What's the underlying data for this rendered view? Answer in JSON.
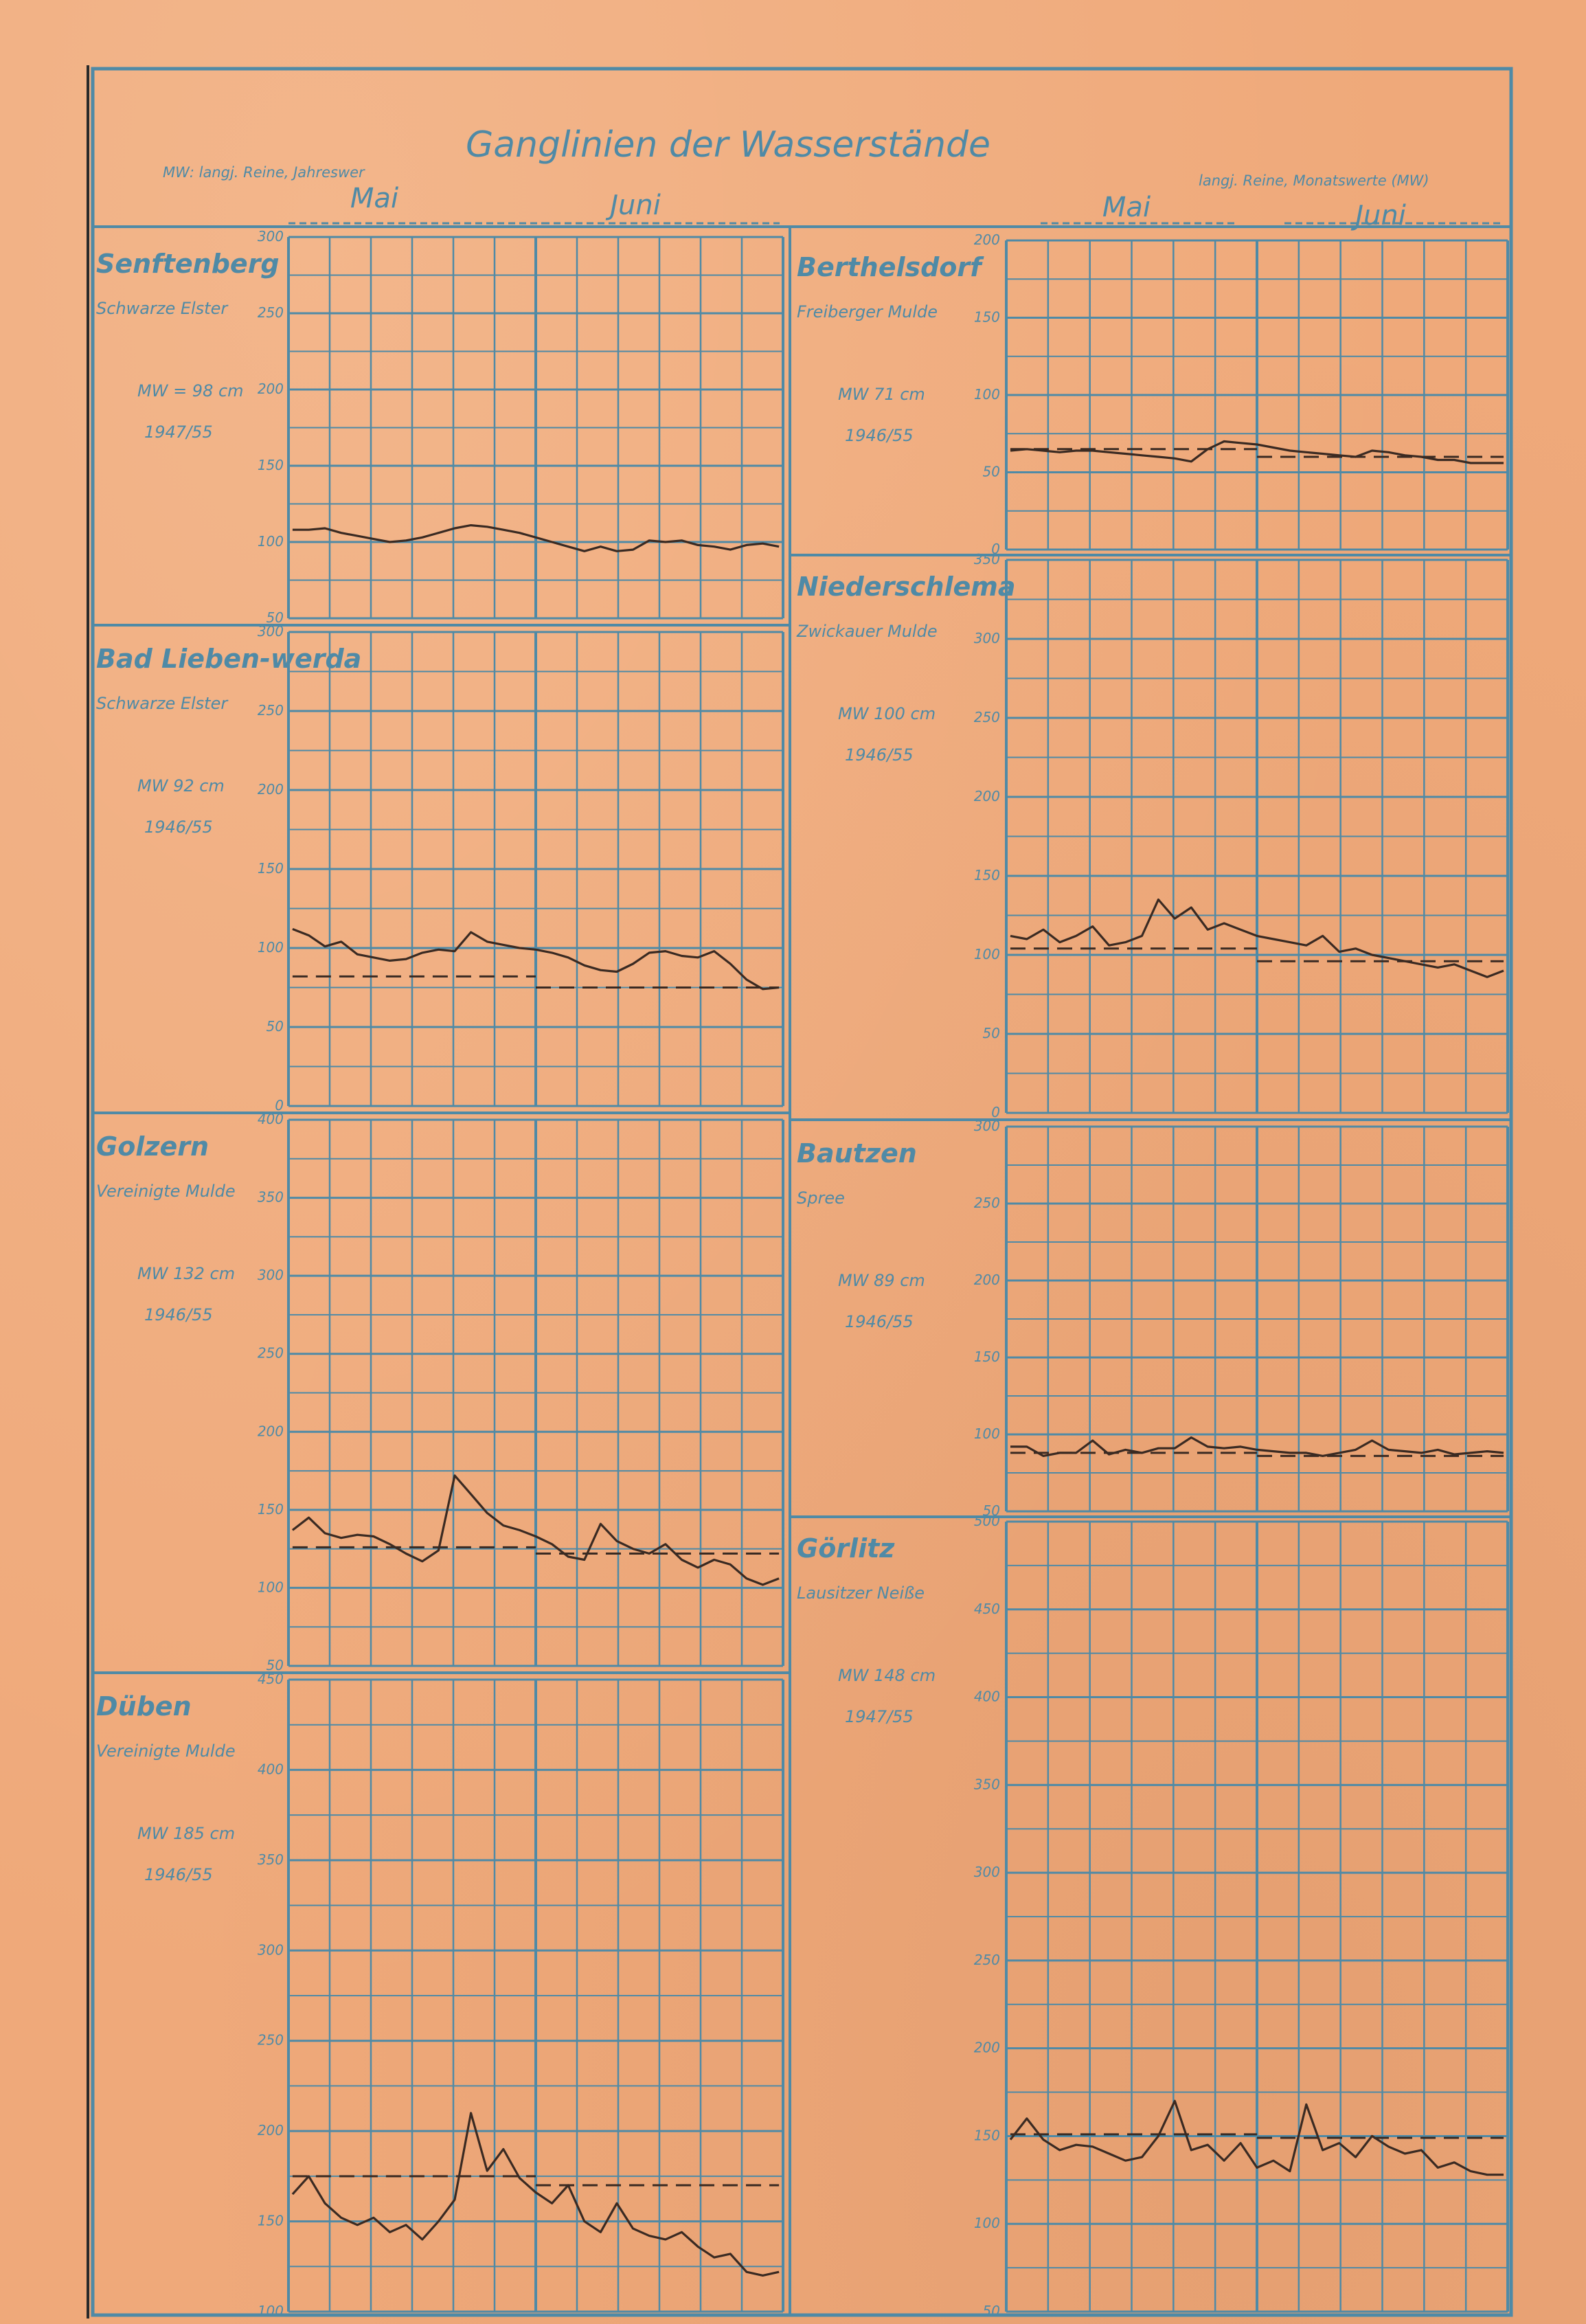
{
  "header": {
    "title": "Ganglinien der Wasserstände",
    "legend_left": "MW: langj. Reine, Jahreswer",
    "legend_right": "langj. Reine, Monatswerte (MW)",
    "month_may": "Mai",
    "month_june": "Juni"
  },
  "colors": {
    "paper": "#efa97a",
    "grid": "#4f8aa6",
    "ink": "#3a2a22"
  },
  "chart_data": [
    {
      "type": "line",
      "station": "Senftenberg",
      "river": "Schwarze Elster",
      "mw": "MW = 98 cm",
      "period": "1947/55",
      "ylim": [
        50,
        300
      ],
      "ticks": [
        300,
        250,
        200,
        150,
        100,
        50
      ],
      "tick_labels": [
        "300",
        "250",
        "200",
        "150",
        "100",
        "50"
      ],
      "x": [
        1,
        3,
        5,
        7,
        9,
        11,
        13,
        15,
        17,
        19,
        21,
        23,
        25,
        27,
        29,
        31,
        33,
        35,
        37,
        39,
        41,
        43,
        45,
        47,
        49,
        51,
        53,
        55,
        57,
        59,
        61
      ],
      "series": [
        {
          "values": [
            108,
            108,
            109,
            106,
            104,
            102,
            100,
            101,
            103,
            106,
            109,
            111,
            110,
            108,
            106,
            103,
            100,
            97,
            94,
            97,
            94,
            95,
            101,
            100,
            101,
            98,
            97,
            95,
            98,
            99,
            97
          ]
        }
      ],
      "mw_line": null
    },
    {
      "type": "line",
      "station": "Bad Lieben-werda",
      "river": "Schwarze Elster",
      "mw": "MW 92 cm",
      "period": "1946/55",
      "ylim": [
        0,
        300
      ],
      "ticks": [
        300,
        250,
        200,
        150,
        100,
        50,
        0
      ],
      "tick_labels": [
        "300",
        "250",
        "200",
        "150",
        "100",
        "50",
        "0"
      ],
      "x": [
        1,
        3,
        5,
        7,
        9,
        11,
        13,
        15,
        17,
        19,
        21,
        23,
        25,
        27,
        29,
        31,
        33,
        35,
        37,
        39,
        41,
        43,
        45,
        47,
        49,
        51,
        53,
        55,
        57,
        59,
        61
      ],
      "series": [
        {
          "values": [
            112,
            108,
            101,
            104,
            96,
            94,
            92,
            93,
            97,
            99,
            98,
            110,
            104,
            102,
            100,
            99,
            97,
            94,
            89,
            86,
            85,
            90,
            97,
            98,
            95,
            94,
            98,
            90,
            80,
            74,
            75
          ]
        }
      ],
      "mw_line": {
        "may": 82,
        "june": 75
      }
    },
    {
      "type": "line",
      "station": "Golzern",
      "river": "Vereinigte Mulde",
      "mw": "MW 132 cm",
      "period": "1946/55",
      "ylim": [
        50,
        400
      ],
      "ticks": [
        400,
        350,
        300,
        250,
        200,
        150,
        100,
        50
      ],
      "tick_labels": [
        "400",
        "350",
        "300",
        "250",
        "200",
        "150",
        "100",
        "50"
      ],
      "x": [
        1,
        3,
        5,
        7,
        9,
        11,
        13,
        15,
        17,
        19,
        21,
        23,
        25,
        27,
        29,
        31,
        33,
        35,
        37,
        39,
        41,
        43,
        45,
        47,
        49,
        51,
        53,
        55,
        57,
        59,
        61
      ],
      "series": [
        {
          "values": [
            137,
            145,
            135,
            132,
            134,
            133,
            128,
            122,
            117,
            124,
            172,
            160,
            148,
            140,
            137,
            133,
            128,
            120,
            118,
            141,
            130,
            125,
            122,
            128,
            118,
            113,
            118,
            115,
            106,
            102,
            106
          ]
        }
      ],
      "mw_line": {
        "may": 126,
        "june": 122
      }
    },
    {
      "type": "line",
      "station": "Düben",
      "river": "Vereinigte Mulde",
      "mw": "MW 185 cm",
      "period": "1946/55",
      "ylim": [
        100,
        450
      ],
      "ticks": [
        450,
        400,
        350,
        300,
        250,
        200,
        150,
        100
      ],
      "tick_labels": [
        "450",
        "400",
        "350",
        "300",
        "250",
        "200",
        "150",
        "100"
      ],
      "x": [
        1,
        3,
        5,
        7,
        9,
        11,
        13,
        15,
        17,
        19,
        21,
        23,
        25,
        27,
        29,
        31,
        33,
        35,
        37,
        39,
        41,
        43,
        45,
        47,
        49,
        51,
        53,
        55,
        57,
        59,
        61
      ],
      "series": [
        {
          "values": [
            165,
            175,
            160,
            152,
            148,
            152,
            144,
            148,
            140,
            150,
            162,
            210,
            178,
            190,
            174,
            166,
            160,
            170,
            150,
            144,
            160,
            146,
            142,
            140,
            144,
            136,
            130,
            132,
            122,
            120,
            122
          ]
        }
      ],
      "mw_line": {
        "may": 175,
        "june": 170
      }
    },
    {
      "type": "line",
      "station": "Berthelsdorf",
      "river": "Freiberger Mulde",
      "mw": "MW 71 cm",
      "period": "1946/55",
      "ylim": [
        0,
        200
      ],
      "ticks": [
        200,
        150,
        100,
        50,
        0
      ],
      "tick_labels": [
        "200",
        "150",
        "100",
        "50",
        "0"
      ],
      "x": [
        1,
        3,
        5,
        7,
        9,
        11,
        13,
        15,
        17,
        19,
        21,
        23,
        25,
        27,
        29,
        31,
        33,
        35,
        37,
        39,
        41,
        43,
        45,
        47,
        49,
        51,
        53,
        55,
        57,
        59,
        61
      ],
      "series": [
        {
          "values": [
            64,
            65,
            64,
            63,
            64,
            64,
            63,
            62,
            61,
            60,
            59,
            57,
            65,
            70,
            69,
            68,
            66,
            64,
            63,
            62,
            61,
            60,
            64,
            63,
            61,
            60,
            58,
            58,
            56,
            56,
            56
          ]
        }
      ],
      "mw_line": {
        "may": 65,
        "june": 60
      }
    },
    {
      "type": "line",
      "station": "Niederschlema",
      "river": "Zwickauer Mulde",
      "mw": "MW 100 cm",
      "period": "1946/55",
      "ylim": [
        0,
        350
      ],
      "ticks": [
        350,
        300,
        250,
        200,
        150,
        100,
        50,
        0
      ],
      "tick_labels": [
        "350",
        "300",
        "250",
        "200",
        "150",
        "100",
        "50",
        "0"
      ],
      "x": [
        1,
        3,
        5,
        7,
        9,
        11,
        13,
        15,
        17,
        19,
        21,
        23,
        25,
        27,
        29,
        31,
        33,
        35,
        37,
        39,
        41,
        43,
        45,
        47,
        49,
        51,
        53,
        55,
        57,
        59,
        61
      ],
      "series": [
        {
          "values": [
            112,
            110,
            116,
            108,
            112,
            118,
            106,
            108,
            112,
            135,
            123,
            130,
            116,
            120,
            116,
            112,
            110,
            108,
            106,
            112,
            102,
            104,
            100,
            98,
            96,
            94,
            92,
            94,
            90,
            86,
            90
          ]
        }
      ],
      "mw_line": {
        "may": 104,
        "june": 96
      }
    },
    {
      "type": "line",
      "station": "Bautzen",
      "river": "Spree",
      "mw": "MW 89 cm",
      "period": "1946/55",
      "ylim": [
        50,
        300
      ],
      "ticks": [
        300,
        250,
        200,
        150,
        100,
        50
      ],
      "tick_labels": [
        "300",
        "250",
        "200",
        "150",
        "100",
        "50"
      ],
      "x": [
        1,
        3,
        5,
        7,
        9,
        11,
        13,
        15,
        17,
        19,
        21,
        23,
        25,
        27,
        29,
        31,
        33,
        35,
        37,
        39,
        41,
        43,
        45,
        47,
        49,
        51,
        53,
        55,
        57,
        59,
        61
      ],
      "series": [
        {
          "values": [
            92,
            92,
            86,
            88,
            88,
            96,
            87,
            90,
            88,
            91,
            91,
            98,
            92,
            91,
            92,
            90,
            89,
            88,
            88,
            86,
            88,
            90,
            96,
            90,
            89,
            88,
            90,
            87,
            88,
            89,
            88
          ]
        }
      ],
      "mw_line": {
        "may": 88,
        "june": 86
      }
    },
    {
      "type": "line",
      "station": "Görlitz",
      "river": "Lausitzer Neiße",
      "mw": "MW 148 cm",
      "period": "1947/55",
      "ylim": [
        50,
        500
      ],
      "ticks": [
        500,
        450,
        400,
        350,
        300,
        250,
        200,
        150,
        100,
        50
      ],
      "tick_labels": [
        "500",
        "450",
        "400",
        "350",
        "300",
        "250",
        "200",
        "150",
        "100",
        "50"
      ],
      "x": [
        1,
        3,
        5,
        7,
        9,
        11,
        13,
        15,
        17,
        19,
        21,
        23,
        25,
        27,
        29,
        31,
        33,
        35,
        37,
        39,
        41,
        43,
        45,
        47,
        49,
        51,
        53,
        55,
        57,
        59,
        61
      ],
      "series": [
        {
          "values": [
            148,
            160,
            148,
            142,
            145,
            144,
            140,
            136,
            138,
            150,
            170,
            142,
            145,
            136,
            146,
            132,
            136,
            130,
            168,
            142,
            146,
            138,
            150,
            144,
            140,
            142,
            132,
            135,
            130,
            128,
            128
          ]
        }
      ],
      "mw_line": {
        "may": 151,
        "june": 149
      }
    }
  ]
}
